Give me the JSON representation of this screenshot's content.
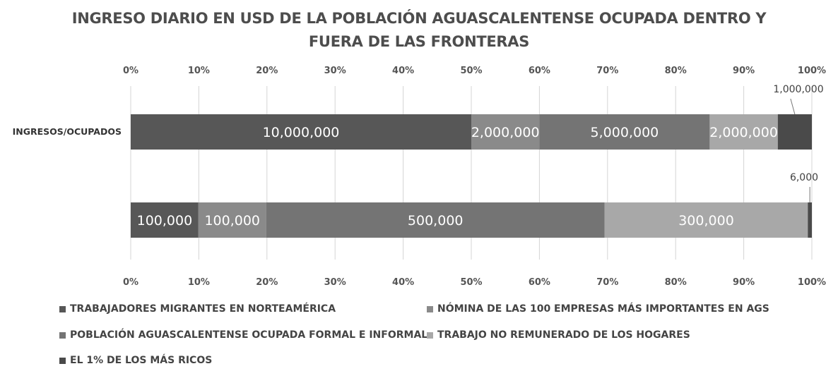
{
  "chart_data": {
    "type": "bar",
    "orientation": "horizontal",
    "stacking": "percent",
    "title_lines": [
      "INGRESO DIARIO EN USD DE LA POBLACIÓN AGUASCALENTENSE OCUPADA  DENTRO Y",
      "FUERA DE LAS FRONTERAS"
    ],
    "categories": [
      "INGRESOS/OCUPADOS",
      ""
    ],
    "series": [
      {
        "name": "TRABAJADORES MIGRANTES EN NORTEAMÉRICA",
        "values": [
          10000000,
          100000
        ],
        "labels": [
          "10,000,000",
          "100,000"
        ],
        "color": "#575757"
      },
      {
        "name": "NÓMINA DE LAS 100 EMPRESAS MÁS IMPORTANTES EN AGS",
        "values": [
          2000000,
          100000
        ],
        "labels": [
          "2,000,000",
          "100,000"
        ],
        "color": "#8a8a8a"
      },
      {
        "name": "POBLACIÓN AGUASCALENTENSE OCUPADA FORMAL E INFORMAL",
        "values": [
          5000000,
          500000
        ],
        "labels": [
          "5,000,000",
          "500,000"
        ],
        "color": "#747474"
      },
      {
        "name": "TRABAJO NO REMUNERADO DE LOS HOGARES",
        "values": [
          2000000,
          300000
        ],
        "labels": [
          "2,000,000",
          "300,000"
        ],
        "color": "#a8a8a8"
      },
      {
        "name": "EL 1% DE LOS MÁS RICOS",
        "values": [
          1000000,
          6000
        ],
        "labels": [
          "1,000,000",
          "6,000"
        ],
        "color": "#4a4a4a"
      }
    ],
    "axis_ticks": [
      "0%",
      "10%",
      "20%",
      "30%",
      "40%",
      "50%",
      "60%",
      "70%",
      "80%",
      "90%",
      "100%"
    ],
    "xlim": [
      0,
      100
    ],
    "grid": true,
    "axis_positions": [
      "top",
      "bottom"
    ],
    "legend_position": "bottom"
  }
}
